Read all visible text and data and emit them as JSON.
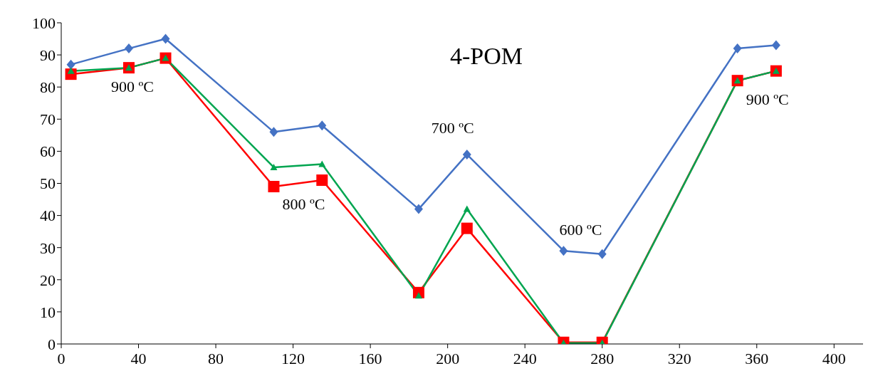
{
  "chart_data": {
    "type": "line",
    "title": "4-POM",
    "x": [
      5,
      35,
      54,
      110,
      135,
      185,
      210,
      260,
      280,
      350,
      370
    ],
    "series": [
      {
        "color": "#4472c4",
        "marker": "diamond",
        "values": [
          87,
          92,
          95,
          66,
          68,
          42,
          59,
          29,
          28,
          92,
          93
        ]
      },
      {
        "color": "#ff0000",
        "marker": "square",
        "values": [
          84,
          86,
          89,
          49,
          51,
          16,
          36,
          0.5,
          0.5,
          82,
          85
        ]
      },
      {
        "color": "#00a550",
        "marker": "triangle",
        "values": [
          85,
          86,
          89,
          55,
          56,
          15,
          42,
          0.3,
          0.3,
          82,
          85
        ]
      }
    ],
    "xlim": [
      0,
      415
    ],
    "xticks": [
      0,
      40,
      80,
      120,
      160,
      200,
      240,
      280,
      320,
      360,
      400
    ],
    "ylim": [
      0,
      100
    ],
    "yticks": [
      0,
      10,
      20,
      30,
      40,
      50,
      60,
      70,
      80,
      90,
      100
    ],
    "grid": false,
    "legend": false,
    "line_style": "solid",
    "annotations": [
      {
        "text": "900 ºC",
        "x": 35,
        "y": 86
      },
      {
        "text": "800 ºC",
        "x": 110,
        "y": 49
      },
      {
        "text": "700 ºC",
        "x": 210,
        "y": 59
      },
      {
        "text": "600 ºC",
        "x": 260,
        "y": 29
      },
      {
        "text": "900 ºC",
        "x": 350,
        "y": 82
      }
    ]
  }
}
